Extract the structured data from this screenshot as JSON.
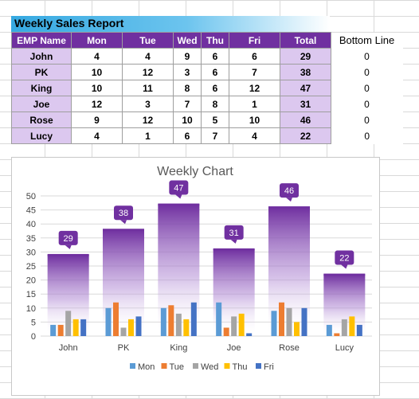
{
  "report": {
    "title": "Weekly Sales Report",
    "headers": [
      "EMP Name",
      "Mon",
      "Tue",
      "Wed",
      "Thu",
      "Fri",
      "Total"
    ],
    "bottom_line_header": "Bottom Line",
    "rows": [
      {
        "name": "John",
        "mon": "4",
        "tue": "4",
        "wed": "9",
        "thu": "6",
        "fri": "6",
        "total": "29",
        "bottom": "0"
      },
      {
        "name": "PK",
        "mon": "10",
        "tue": "12",
        "wed": "3",
        "thu": "6",
        "fri": "7",
        "total": "38",
        "bottom": "0"
      },
      {
        "name": "King",
        "mon": "10",
        "tue": "11",
        "wed": "8",
        "thu": "6",
        "fri": "12",
        "total": "47",
        "bottom": "0"
      },
      {
        "name": "Joe",
        "mon": "12",
        "tue": "3",
        "wed": "7",
        "thu": "8",
        "fri": "1",
        "total": "31",
        "bottom": "0"
      },
      {
        "name": "Rose",
        "mon": "9",
        "tue": "12",
        "wed": "10",
        "thu": "5",
        "fri": "10",
        "total": "46",
        "bottom": "0"
      },
      {
        "name": "Lucy",
        "mon": "4",
        "tue": "1",
        "wed": "6",
        "thu": "7",
        "fri": "4",
        "total": "22",
        "bottom": "0"
      }
    ]
  },
  "colors": {
    "header_purple": "#7030a0",
    "name_cell": "#dcc8ef",
    "total_bar_top": "#7030a0",
    "label_bubble": "#7030a0",
    "mon": "#5b9bd5",
    "tue": "#ed7d31",
    "wed": "#a5a5a5",
    "thu": "#ffc000",
    "fri": "#4472c4"
  },
  "chart_data": {
    "type": "bar",
    "title": "Weekly Chart",
    "categories": [
      "John",
      "PK",
      "King",
      "Joe",
      "Rose",
      "Lucy"
    ],
    "series": [
      {
        "name": "Mon",
        "values": [
          4,
          10,
          10,
          12,
          9,
          4
        ]
      },
      {
        "name": "Tue",
        "values": [
          4,
          12,
          11,
          3,
          12,
          1
        ]
      },
      {
        "name": "Wed",
        "values": [
          9,
          3,
          8,
          7,
          10,
          6
        ]
      },
      {
        "name": "Thu",
        "values": [
          6,
          6,
          6,
          8,
          5,
          7
        ]
      },
      {
        "name": "Fri",
        "values": [
          6,
          7,
          12,
          1,
          10,
          4
        ]
      }
    ],
    "totals": [
      29,
      38,
      47,
      31,
      46,
      22
    ],
    "y_ticks": [
      "0",
      "5",
      "10",
      "15",
      "20",
      "25",
      "30",
      "35",
      "40",
      "45",
      "50"
    ],
    "ylim": [
      0,
      50
    ],
    "xlabel": "",
    "ylabel": "",
    "grid": true,
    "legend": "bottom"
  }
}
